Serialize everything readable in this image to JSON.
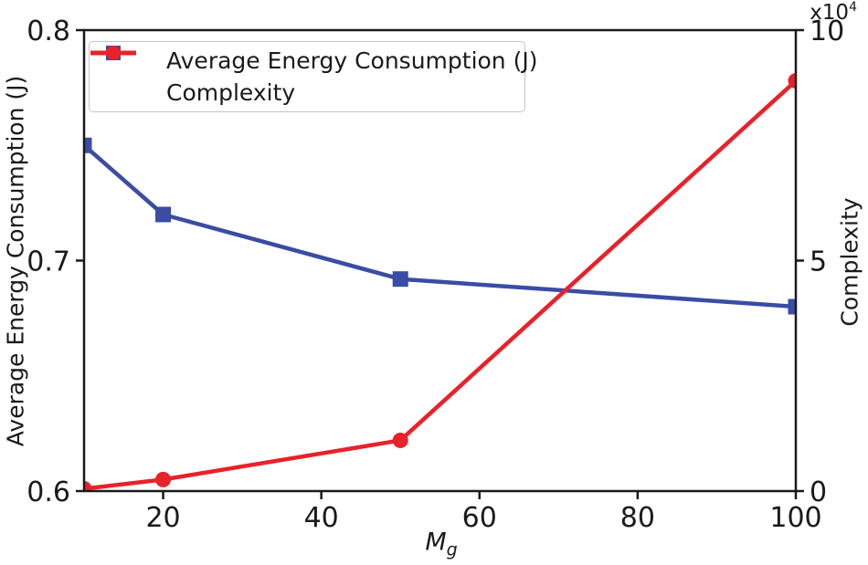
{
  "figure": {
    "background": "#ffffff",
    "axis_color": "#1a1a1a"
  },
  "chart_data": {
    "type": "line",
    "x": [
      10,
      20,
      50,
      100
    ],
    "series": [
      {
        "name": "Average Energy Consumption (J)",
        "axis": "left",
        "color": "#3A4CA4",
        "marker": "square",
        "values": [
          0.75,
          0.72,
          0.692,
          0.68
        ]
      },
      {
        "name": "Complexity",
        "axis": "right",
        "color": "#E8212A",
        "marker": "circle",
        "values": [
          0.05,
          0.25,
          1.1,
          8.9
        ]
      }
    ],
    "xlabel": {
      "base": "M",
      "sub": "g"
    },
    "x_ticks": [
      "20",
      "40",
      "60",
      "80",
      "100"
    ],
    "xlim": [
      10,
      100
    ],
    "left_axis": {
      "label": "Average Energy Consumption (J)",
      "ticks": [
        "0.6",
        "0.7",
        "0.8"
      ],
      "lim": [
        0.6,
        0.8
      ]
    },
    "right_axis": {
      "label": "Complexity",
      "ticks": [
        "0",
        "5",
        "10"
      ],
      "lim": [
        0,
        10
      ],
      "multiplier": {
        "base": "x10",
        "exp": "4"
      }
    },
    "legend_position": "upper-left",
    "grid": false
  }
}
